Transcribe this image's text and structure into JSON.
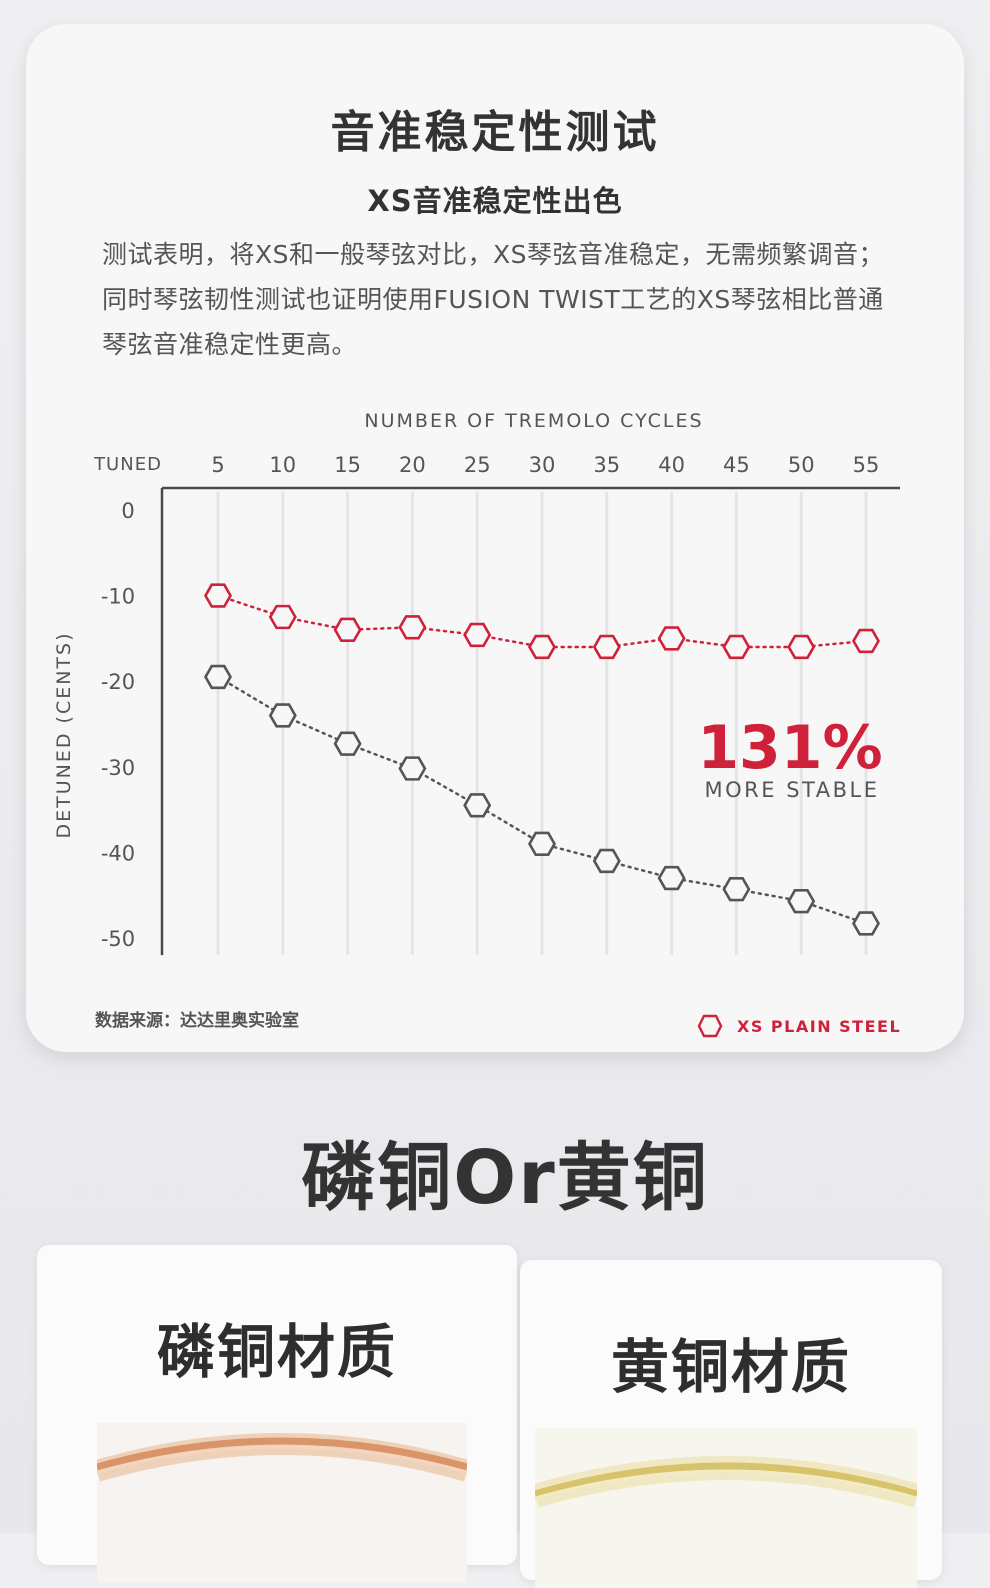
{
  "card": {
    "title": "音准稳定性测试",
    "subtitle": "XS音准稳定性出色",
    "description": "测试表明，将XS和一般琴弦对比，XS琴弦音准稳定，无需频繁调音；同时琴弦韧性测试也证明使用FUSION TWIST工艺的XS琴弦相比普通琴弦音准稳定性更高。",
    "source_note": "数据来源：达达里奥实验室"
  },
  "chart_data": {
    "type": "line",
    "title": "NUMBER OF TREMOLO CYCLES",
    "xlabel": "NUMBER OF TREMOLO CYCLES",
    "ylabel": "DETUNED (CENTS)",
    "x_axis_position": "top",
    "x_first_label": "TUNED",
    "x": [
      5,
      10,
      15,
      20,
      25,
      30,
      35,
      40,
      45,
      50,
      55
    ],
    "y_ticks": [
      0,
      -10,
      -20,
      -30,
      -40,
      -50
    ],
    "ylim": [
      -52,
      0
    ],
    "grid": true,
    "series": [
      {
        "name": "XS PLAIN STEEL",
        "color": "#d0213b",
        "values": [
          -10,
          -12.5,
          -14,
          -13.7,
          -14.6,
          -16,
          -16,
          -15,
          -16,
          -16,
          -15.3
        ]
      },
      {
        "name": "",
        "color": "#555555",
        "values": [
          -19.5,
          -24,
          -27.3,
          -30.2,
          -34.5,
          -39,
          -41,
          -43,
          -44.3,
          -45.7,
          -48.3
        ]
      }
    ],
    "annotation": {
      "value": "131%",
      "label": "MORE STABLE",
      "color": "#d0213b"
    },
    "legend_placement": "bottom-right"
  },
  "section": {
    "title": "磷铜Or黄铜"
  },
  "materials": [
    {
      "title": "磷铜材质"
    },
    {
      "title": "黄铜材质"
    }
  ],
  "colors": {
    "accent": "#d0213b",
    "text": "#333333",
    "grid": "#e5e5e8"
  }
}
